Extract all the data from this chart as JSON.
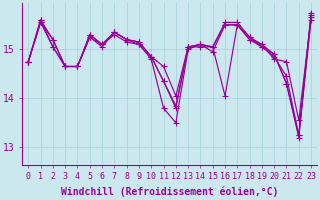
{
  "background_color": "#cce8ef",
  "line_color": "#990099",
  "grid_color": "#aad4dc",
  "xlabel": "Windchill (Refroidissement éolien,°C)",
  "ylabel_ticks": [
    13,
    14,
    15
  ],
  "xlim": [
    -0.5,
    23.5
  ],
  "ylim": [
    12.65,
    15.95
  ],
  "xticks": [
    0,
    1,
    2,
    3,
    4,
    5,
    6,
    7,
    8,
    9,
    10,
    11,
    12,
    13,
    14,
    15,
    16,
    17,
    18,
    19,
    20,
    21,
    22,
    23
  ],
  "series": [
    [
      14.75,
      15.55,
      15.05,
      14.65,
      14.65,
      15.25,
      15.05,
      15.35,
      15.2,
      15.15,
      14.85,
      14.65,
      14.05,
      15.05,
      15.05,
      15.05,
      14.05,
      15.5,
      15.2,
      15.1,
      14.8,
      14.75,
      13.55,
      15.65
    ],
    [
      14.75,
      15.6,
      15.05,
      14.65,
      14.65,
      15.3,
      15.1,
      15.35,
      15.2,
      15.15,
      14.85,
      14.35,
      13.8,
      15.05,
      15.1,
      15.05,
      15.5,
      15.5,
      15.25,
      15.05,
      14.85,
      14.45,
      13.25,
      15.7
    ],
    [
      14.75,
      15.6,
      15.2,
      14.65,
      14.65,
      15.3,
      15.1,
      15.35,
      15.2,
      15.1,
      14.85,
      14.35,
      13.85,
      15.05,
      15.1,
      15.05,
      15.55,
      15.55,
      15.25,
      15.1,
      14.9,
      14.3,
      13.25,
      15.75
    ],
    [
      14.75,
      15.55,
      15.2,
      14.65,
      14.65,
      15.25,
      15.1,
      15.3,
      15.15,
      15.1,
      14.8,
      13.8,
      13.5,
      15.0,
      15.1,
      14.95,
      15.5,
      15.5,
      15.2,
      15.05,
      14.9,
      14.3,
      13.2,
      15.6
    ]
  ],
  "marker": "+",
  "markersize": 4,
  "linewidth": 0.85,
  "tick_fontsize": 6,
  "xlabel_fontsize": 7
}
